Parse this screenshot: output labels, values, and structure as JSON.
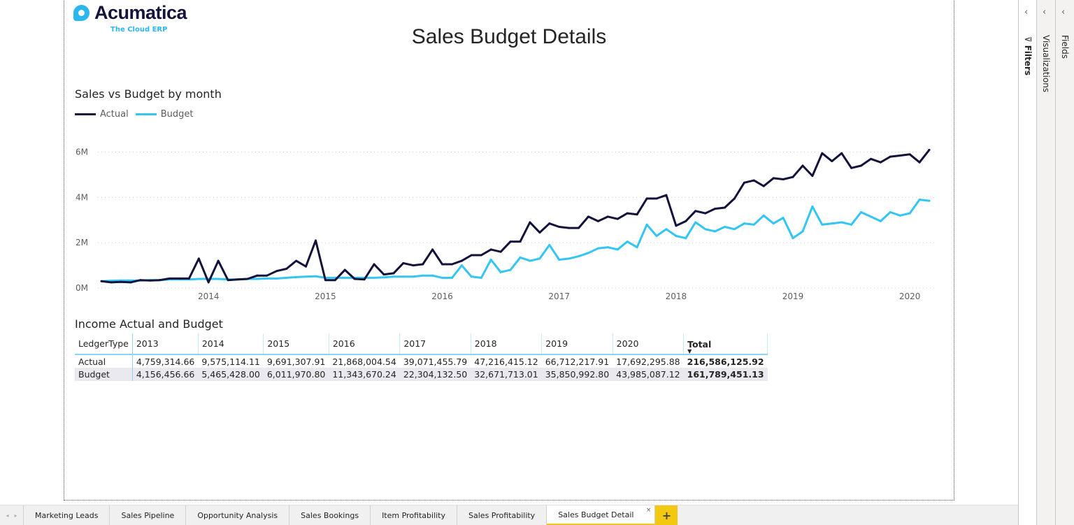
{
  "logo": {
    "name": "Acumatica",
    "tagline": "The Cloud ERP"
  },
  "page_title": "Sales Budget Details",
  "chart_data": {
    "type": "line",
    "title": "Sales vs Budget by month",
    "x": [
      "2013-02",
      "2013-03",
      "2013-04",
      "2013-05",
      "2013-06",
      "2013-07",
      "2013-08",
      "2013-09",
      "2013-10",
      "2013-11",
      "2013-12",
      "2014-01",
      "2014-02",
      "2014-03",
      "2014-04",
      "2014-05",
      "2014-06",
      "2014-07",
      "2014-08",
      "2014-09",
      "2014-10",
      "2014-11",
      "2014-12",
      "2015-01",
      "2015-02",
      "2015-03",
      "2015-04",
      "2015-05",
      "2015-06",
      "2015-07",
      "2015-08",
      "2015-09",
      "2015-10",
      "2015-11",
      "2015-12",
      "2016-01",
      "2016-02",
      "2016-03",
      "2016-04",
      "2016-05",
      "2016-06",
      "2016-07",
      "2016-08",
      "2016-09",
      "2016-10",
      "2016-11",
      "2016-12",
      "2017-01",
      "2017-02",
      "2017-03",
      "2017-04",
      "2017-05",
      "2017-06",
      "2017-07",
      "2017-08",
      "2017-09",
      "2017-10",
      "2017-11",
      "2017-12",
      "2018-01",
      "2018-02",
      "2018-03",
      "2018-04",
      "2018-05",
      "2018-06",
      "2018-07",
      "2018-08",
      "2018-09",
      "2018-10",
      "2018-11",
      "2018-12",
      "2019-01",
      "2019-02",
      "2019-03",
      "2019-04",
      "2019-05",
      "2019-06",
      "2019-07",
      "2019-08",
      "2019-09",
      "2019-10",
      "2019-11",
      "2019-12",
      "2020-01",
      "2020-02",
      "2020-03"
    ],
    "series": [
      {
        "name": "Actual",
        "color": "#12123a",
        "values": [
          0.3,
          0.25,
          0.27,
          0.25,
          0.35,
          0.33,
          0.35,
          0.42,
          0.42,
          0.42,
          1.3,
          0.25,
          1.2,
          0.35,
          0.38,
          0.4,
          0.55,
          0.55,
          0.75,
          0.85,
          1.2,
          0.95,
          2.1,
          0.35,
          0.35,
          0.8,
          0.4,
          0.38,
          1.05,
          0.6,
          0.65,
          1.1,
          1.0,
          1.05,
          1.7,
          1.05,
          1.05,
          1.2,
          1.45,
          1.45,
          1.7,
          1.6,
          2.05,
          2.05,
          2.9,
          2.45,
          2.85,
          2.7,
          2.65,
          2.65,
          3.15,
          2.95,
          3.15,
          3.05,
          3.3,
          3.25,
          3.95,
          3.95,
          4.1,
          2.75,
          2.95,
          3.4,
          3.3,
          3.5,
          3.55,
          3.95,
          4.65,
          4.75,
          4.5,
          4.85,
          4.8,
          4.9,
          5.4,
          4.95,
          5.95,
          5.6,
          5.95,
          5.3,
          5.4,
          5.7,
          5.55,
          5.8,
          5.85,
          5.9,
          5.55,
          6.1
        ]
      },
      {
        "name": "Budget",
        "color": "#33c5f3",
        "values": [
          0.3,
          0.32,
          0.33,
          0.33,
          0.33,
          0.35,
          0.35,
          0.38,
          0.38,
          0.38,
          0.4,
          0.4,
          0.4,
          0.38,
          0.38,
          0.4,
          0.4,
          0.42,
          0.42,
          0.45,
          0.48,
          0.5,
          0.52,
          0.45,
          0.45,
          0.45,
          0.45,
          0.45,
          0.45,
          0.47,
          0.5,
          0.5,
          0.5,
          0.55,
          0.55,
          0.45,
          0.45,
          1.0,
          0.5,
          0.45,
          1.25,
          0.7,
          0.8,
          1.35,
          1.2,
          1.3,
          1.9,
          1.25,
          1.3,
          1.4,
          1.55,
          1.75,
          1.8,
          1.7,
          2.05,
          1.8,
          2.8,
          2.3,
          2.6,
          2.3,
          2.2,
          2.9,
          2.6,
          2.5,
          2.7,
          2.6,
          2.85,
          2.8,
          3.2,
          2.85,
          3.1,
          2.2,
          2.5,
          3.6,
          2.8,
          2.85,
          2.9,
          2.8,
          3.35,
          3.15,
          2.95,
          3.35,
          3.2,
          3.3,
          3.9,
          3.85
        ]
      }
    ],
    "y_unit": "M",
    "ylim": [
      0,
      6.6
    ],
    "y_ticks": [
      "0M",
      "2M",
      "4M",
      "6M"
    ],
    "y_tick_values": [
      0,
      2,
      4,
      6
    ],
    "x_ticks": [
      "2014",
      "2015",
      "2016",
      "2017",
      "2018",
      "2019",
      "2020"
    ],
    "grid": true,
    "legend": "top-left"
  },
  "table": {
    "title": "Income Actual and Budget",
    "columns": [
      "LedgerType",
      "2013",
      "2014",
      "2015",
      "2016",
      "2017",
      "2018",
      "2019",
      "2020",
      "Total"
    ],
    "rows": [
      [
        "Actual",
        "4,759,314.66",
        "9,575,114.11",
        "9,691,307.91",
        "21,868,004.54",
        "39,071,455.79",
        "47,216,415.12",
        "66,712,217.91",
        "17,692,295.88",
        "216,586,125.92"
      ],
      [
        "Budget",
        "4,156,456.66",
        "5,465,428.00",
        "6,011,970.80",
        "11,343,670.24",
        "22,304,132.50",
        "32,671,713.01",
        "35,850,992.80",
        "43,985,087.12",
        "161,789,451.13"
      ]
    ]
  },
  "panes": {
    "filters": "Filters",
    "visualizations": "Visualizations",
    "fields": "Fields"
  },
  "tabs": [
    "Marketing Leads",
    "Sales Pipeline",
    "Opportunity Analysis",
    "Sales Bookings",
    "Item Profitability",
    "Sales Profitability",
    "Sales Budget Detail"
  ],
  "active_tab": "Sales Budget Detail"
}
